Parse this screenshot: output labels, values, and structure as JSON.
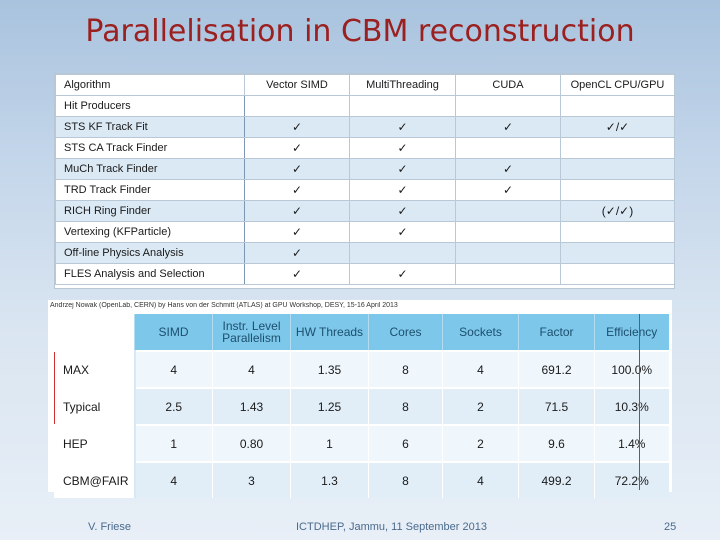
{
  "title": "Parallelisation in CBM reconstruction",
  "table1": {
    "headers": [
      "Algorithm",
      "Vector SIMD",
      "MultiThreading",
      "CUDA",
      "OpenCL CPU/GPU"
    ],
    "rows": [
      {
        "name": "Hit Producers",
        "simd": "",
        "mt": "",
        "cuda": "",
        "opencl": ""
      },
      {
        "name": "STS KF Track Fit",
        "simd": "✓",
        "mt": "✓",
        "cuda": "✓",
        "opencl": "✓/✓"
      },
      {
        "name": "STS CA Track Finder",
        "simd": "✓",
        "mt": "✓",
        "cuda": "",
        "opencl": ""
      },
      {
        "name": "MuCh Track Finder",
        "simd": "✓",
        "mt": "✓",
        "cuda": "✓",
        "opencl": ""
      },
      {
        "name": "TRD Track Finder",
        "simd": "✓",
        "mt": "✓",
        "cuda": "✓",
        "opencl": ""
      },
      {
        "name": "RICH Ring Finder",
        "simd": "✓",
        "mt": "✓",
        "cuda": "",
        "opencl": "(✓/✓)"
      },
      {
        "name": "Vertexing (KFParticle)",
        "simd": "✓",
        "mt": "✓",
        "cuda": "",
        "opencl": ""
      },
      {
        "name": "Off-line Physics Analysis",
        "simd": "✓",
        "mt": "",
        "cuda": "",
        "opencl": ""
      },
      {
        "name": "FLES Analysis and Selection",
        "simd": "✓",
        "mt": "✓",
        "cuda": "",
        "opencl": ""
      }
    ]
  },
  "table2": {
    "caption": "Andrzej Nowak (OpenLab, CERN) by Hans von der Schmitt (ATLAS) at GPU Workshop, DESY, 15-16 April 2013",
    "headers": [
      "SIMD",
      "Instr. Level Parallelism",
      "HW Threads",
      "Cores",
      "Sockets",
      "Factor",
      "Efficiency"
    ],
    "rows": [
      {
        "label": "MAX",
        "values": [
          "4",
          "4",
          "1.35",
          "8",
          "4",
          "691.2",
          "100.0%"
        ]
      },
      {
        "label": "Typical",
        "values": [
          "2.5",
          "1.43",
          "1.25",
          "8",
          "2",
          "71.5",
          "10.3%"
        ]
      },
      {
        "label": "HEP",
        "values": [
          "1",
          "0.80",
          "1",
          "6",
          "2",
          "9.6",
          "1.4%"
        ]
      },
      {
        "label": "CBM@FAIR",
        "values": [
          "4",
          "3",
          "1.3",
          "8",
          "4",
          "499.2",
          "72.2%"
        ]
      }
    ]
  },
  "footer": {
    "left": "V. Friese",
    "center": "ICTDHEP, Jammu, 11 September 2013",
    "page": "25"
  }
}
